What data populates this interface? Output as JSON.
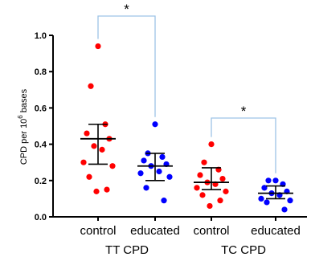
{
  "chart_data": {
    "type": "scatter",
    "ylabel_main": "CPD per 10",
    "ylabel_sup": "6",
    "ylabel_tail": " bases",
    "ylim": [
      0,
      1.0
    ],
    "yticks": [
      "0.0",
      "0.2",
      "0.4",
      "0.6",
      "0.8",
      "1.0"
    ],
    "ytick_values": [
      0,
      0.2,
      0.4,
      0.6,
      0.8,
      1.0
    ],
    "categories": [
      "control",
      "educated",
      "control",
      "educated"
    ],
    "groups": [
      "TT CPD",
      "TC CPD"
    ],
    "colors": {
      "control": "#ff0000",
      "educated": "#0000ff",
      "bracket": "#9dc3e6",
      "axis": "#000000"
    },
    "series": [
      {
        "category": "control",
        "group": "TT CPD",
        "color": "#ff0000",
        "values": [
          0.94,
          0.72,
          0.51,
          0.46,
          0.43,
          0.39,
          0.37,
          0.3,
          0.28,
          0.22,
          0.15,
          0.14
        ],
        "mean": 0.43,
        "error_low": 0.29,
        "error_high": 0.51
      },
      {
        "category": "educated",
        "group": "TT CPD",
        "color": "#0000ff",
        "values": [
          0.51,
          0.35,
          0.33,
          0.31,
          0.29,
          0.28,
          0.25,
          0.24,
          0.22,
          0.16,
          0.09
        ],
        "mean": 0.28,
        "error_low": 0.2,
        "error_high": 0.35
      },
      {
        "category": "control",
        "group": "TC CPD",
        "color": "#ff0000",
        "values": [
          0.4,
          0.3,
          0.26,
          0.23,
          0.21,
          0.19,
          0.18,
          0.16,
          0.14,
          0.12,
          0.09,
          0.06
        ],
        "mean": 0.19,
        "error_low": 0.15,
        "error_high": 0.27
      },
      {
        "category": "educated",
        "group": "TC CPD",
        "color": "#0000ff",
        "values": [
          0.2,
          0.2,
          0.18,
          0.16,
          0.14,
          0.13,
          0.12,
          0.1,
          0.09,
          0.08,
          0.04
        ],
        "mean": 0.13,
        "error_low": 0.1,
        "error_high": 0.17
      }
    ],
    "significance": [
      {
        "from": 0,
        "to": 1,
        "label": "*"
      },
      {
        "from": 2,
        "to": 3,
        "label": "*"
      }
    ]
  }
}
